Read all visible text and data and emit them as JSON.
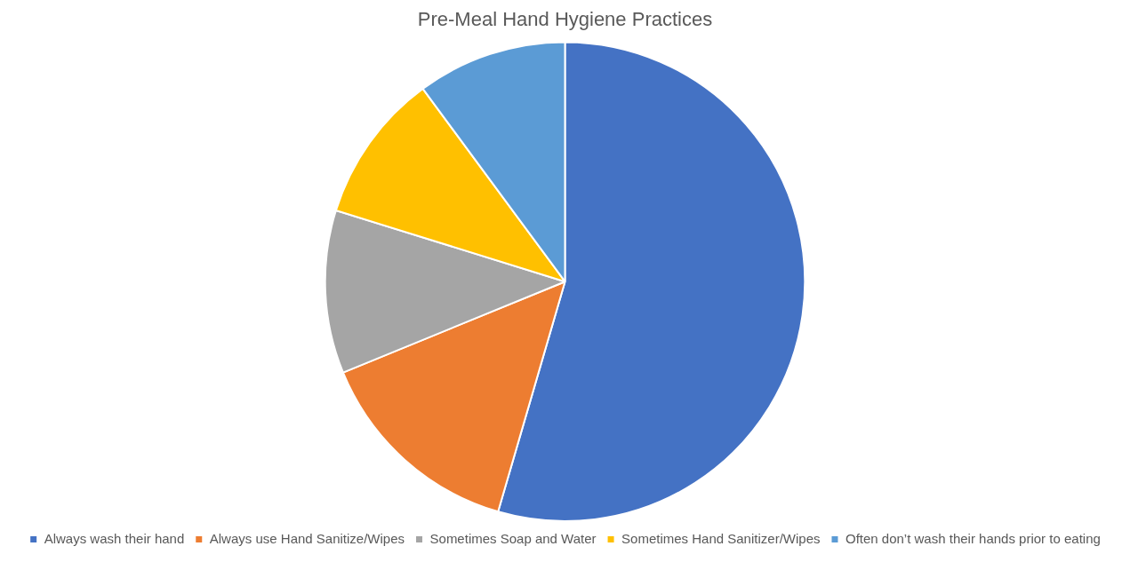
{
  "chart_data": {
    "type": "pie",
    "title": "Pre-Meal Hand Hygiene Practices",
    "categories": [
      "Always wash their hand",
      "Always use Hand Sanitize/Wipes",
      "Sometimes Soap and Water",
      "Sometimes Hand Sanitizer/Wipes",
      "Often don’t wash their hands prior to eating"
    ],
    "values": [
      54.5,
      14.3,
      11,
      10.1,
      10.1
    ],
    "colors": [
      "#4472c4",
      "#ed7d31",
      "#a5a5a5",
      "#ffc000",
      "#5b9bd5"
    ],
    "legend": "bottom"
  }
}
